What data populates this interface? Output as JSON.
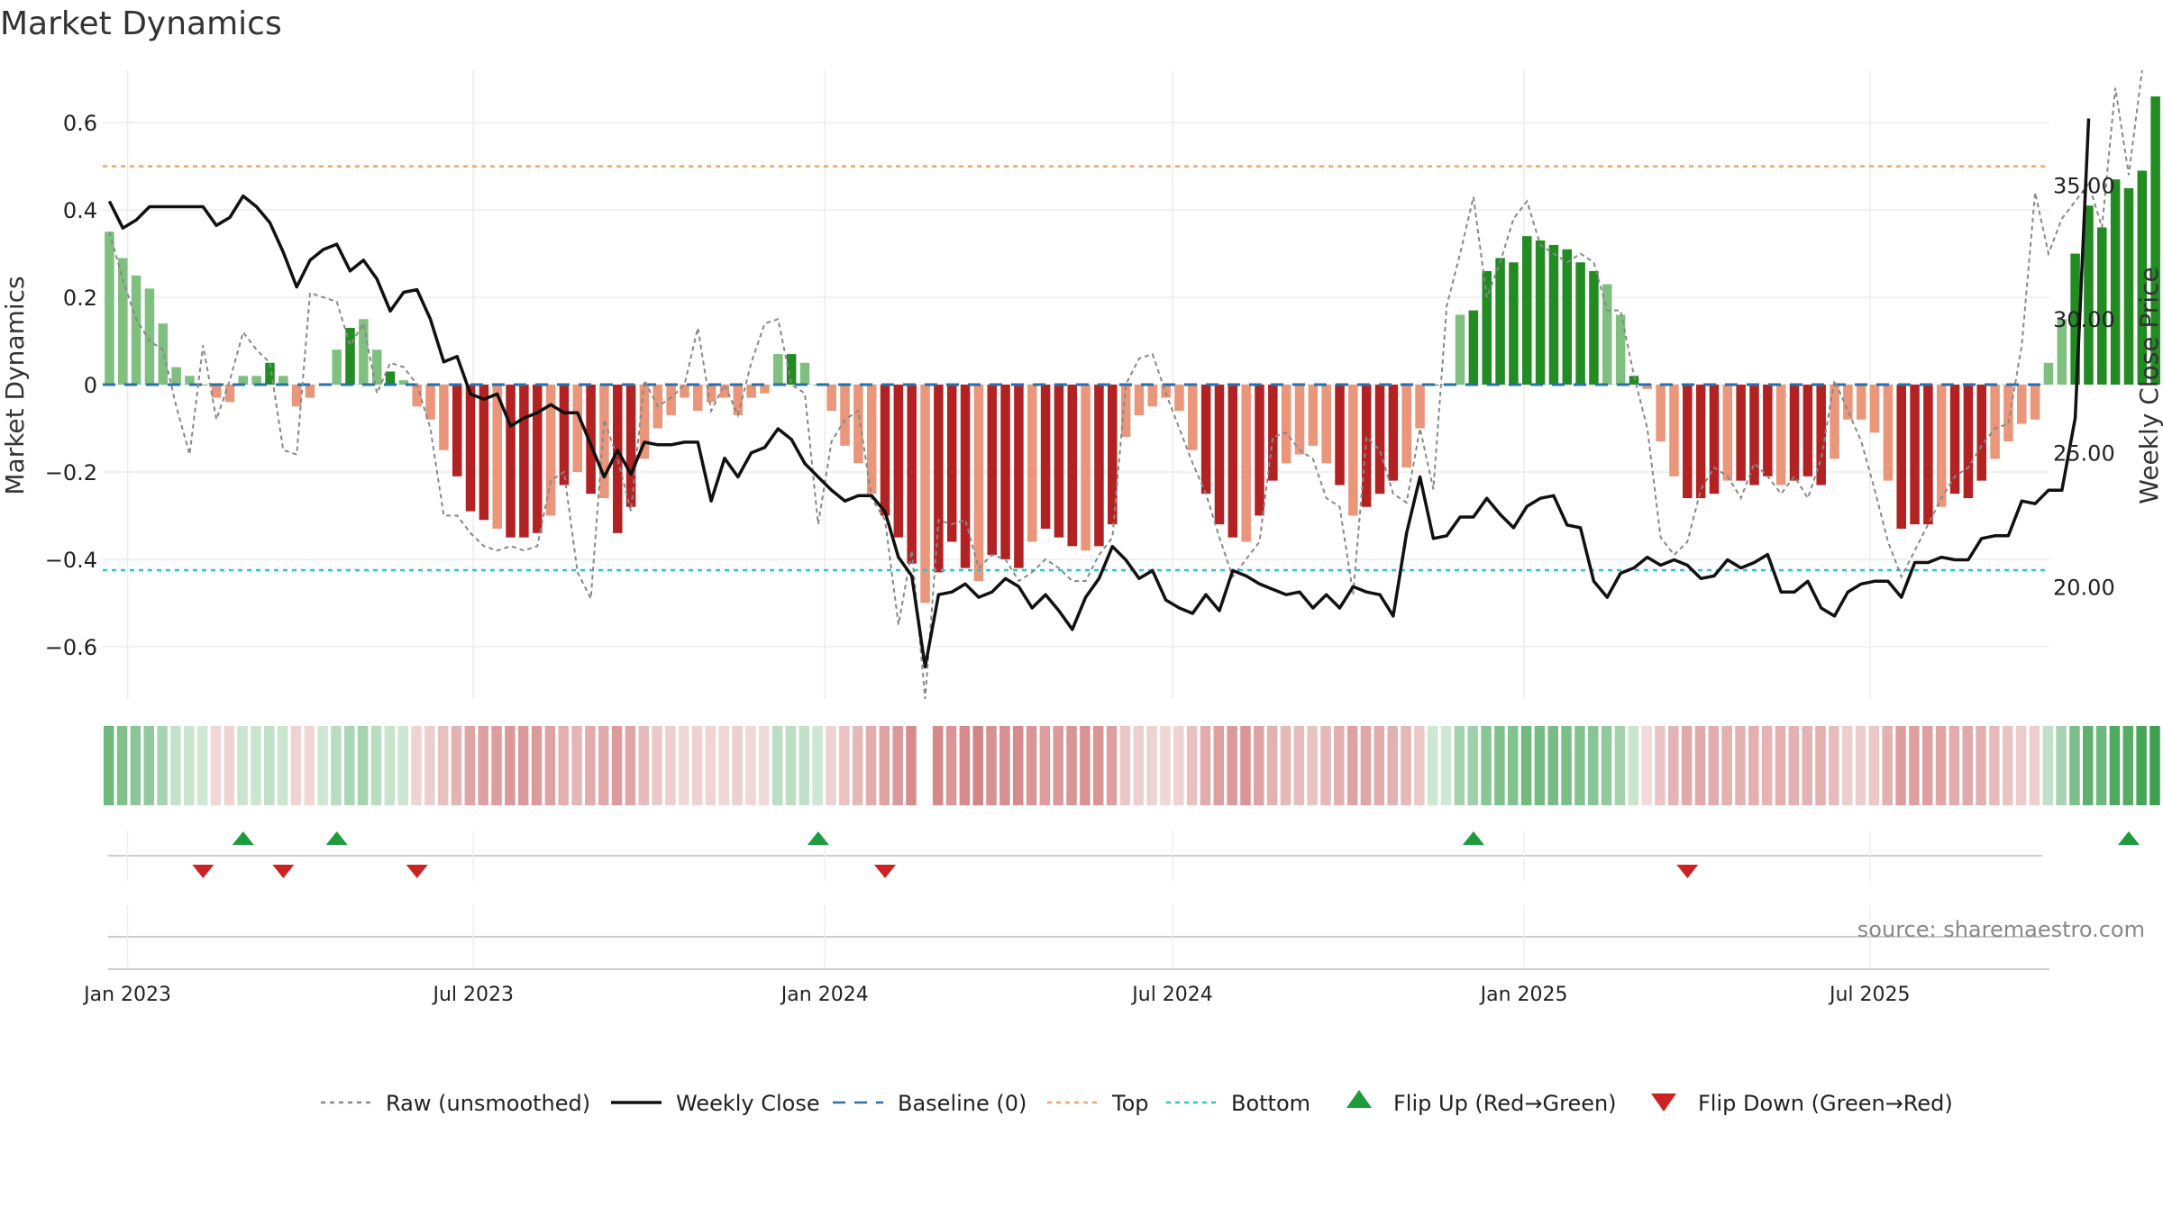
{
  "chart_data": {
    "type": "bar",
    "title": "Market Dynamics",
    "ylabel_left": "Market Dynamics",
    "ylabel_right": "Weekly Close Price",
    "source": "source: sharemaestro.com",
    "ylim_left": [
      -0.72,
      0.72
    ],
    "ylim_right": [
      15.8,
      39.3
    ],
    "yticks_left": [
      -0.6,
      -0.4,
      -0.2,
      0,
      0.2,
      0.4,
      0.6
    ],
    "yticks_left_labels": [
      "−0.6",
      "−0.4",
      "−0.2",
      "0",
      "0.2",
      "0.4",
      "0.6"
    ],
    "yticks_right": [
      20,
      25,
      30,
      35
    ],
    "yticks_right_labels": [
      "20.00",
      "25.00",
      "30.00",
      "35.00"
    ],
    "top_level": 0.5,
    "bottom_level": -0.425,
    "x_start": "2022-12-19",
    "x_end": "2025-10-03",
    "xticks": [
      "2023-01-01",
      "2023-07-01",
      "2024-01-01",
      "2024-07-01",
      "2025-01-01",
      "2025-07-01"
    ],
    "xtick_labels": [
      "Jan 2023",
      "Jul 2023",
      "Jan 2024",
      "Jul 2024",
      "Jan 2025",
      "Jul 2025"
    ],
    "grid": true,
    "legend_position": "bottom-center",
    "legend": [
      {
        "label": "Raw (unsmoothed)",
        "kind": "dotted-line",
        "color": "#888888"
      },
      {
        "label": "Weekly Close",
        "kind": "line",
        "color": "#111111"
      },
      {
        "label": "Baseline (0)",
        "kind": "dashed-line",
        "color": "#2b6fa8"
      },
      {
        "label": "Top",
        "kind": "dotted-line",
        "color": "#f4a460"
      },
      {
        "label": "Bottom",
        "kind": "dotted-line",
        "color": "#2ec4c4"
      },
      {
        "label": "Flip Up (Red→Green)",
        "kind": "triangle-up",
        "color": "#1e9b3e"
      },
      {
        "label": "Flip Down (Green→Red)",
        "kind": "triangle-down",
        "color": "#cc2222"
      }
    ],
    "colors": {
      "green_strong": "#228b22",
      "green_light": "#7fbf7f",
      "red_strong": "#b22222",
      "red_light": "#e9967a",
      "baseline": "#2b6fa8",
      "top": "#f4a460",
      "bottom": "#2ec4c4"
    },
    "series": [
      {
        "name": "Market Dynamics",
        "values": [
          0.35,
          0.29,
          0.25,
          0.22,
          0.14,
          0.04,
          0.02,
          0.0,
          -0.03,
          -0.04,
          0.02,
          0.02,
          0.05,
          0.02,
          -0.05,
          -0.03,
          0.0,
          0.08,
          0.13,
          0.15,
          0.08,
          0.03,
          0.01,
          -0.05,
          -0.08,
          -0.15,
          -0.21,
          -0.29,
          -0.31,
          -0.33,
          -0.35,
          -0.35,
          -0.34,
          -0.3,
          -0.23,
          -0.2,
          -0.25,
          -0.26,
          -0.34,
          -0.28,
          -0.17,
          -0.1,
          -0.07,
          -0.03,
          -0.06,
          -0.04,
          -0.03,
          -0.07,
          -0.03,
          -0.02,
          0.07,
          0.07,
          0.05,
          0.0,
          -0.06,
          -0.14,
          -0.18,
          -0.25,
          -0.3,
          -0.35,
          -0.41,
          -0.5,
          -0.43,
          -0.36,
          -0.42,
          -0.45,
          -0.39,
          -0.4,
          -0.42,
          -0.36,
          -0.33,
          -0.35,
          -0.37,
          -0.38,
          -0.37,
          -0.32,
          -0.12,
          -0.07,
          -0.05,
          -0.03,
          -0.06,
          -0.15,
          -0.25,
          -0.32,
          -0.35,
          -0.36,
          -0.3,
          -0.22,
          -0.18,
          -0.16,
          -0.14,
          -0.18,
          -0.23,
          -0.3,
          -0.28,
          -0.25,
          -0.22,
          -0.19,
          -0.1,
          0.0,
          0.0,
          0.16,
          0.17,
          0.26,
          0.29,
          0.28,
          0.34,
          0.33,
          0.32,
          0.31,
          0.28,
          0.26,
          0.23,
          0.16,
          0.02,
          -0.01,
          -0.13,
          -0.21,
          -0.26,
          -0.26,
          -0.25,
          -0.22,
          -0.22,
          -0.23,
          -0.21,
          -0.23,
          -0.22,
          -0.21,
          -0.23,
          -0.17,
          -0.08,
          -0.08,
          -0.11,
          -0.22,
          -0.33,
          -0.32,
          -0.32,
          -0.28,
          -0.25,
          -0.26,
          -0.22,
          -0.17,
          -0.13,
          -0.09,
          -0.08,
          0.05,
          0.15,
          0.3,
          0.41,
          0.36,
          0.47,
          0.45,
          0.49,
          0.66
        ]
      },
      {
        "name": "Raw (unsmoothed)",
        "values": [
          0.35,
          0.24,
          0.15,
          0.1,
          0.08,
          -0.05,
          -0.16,
          0.09,
          -0.08,
          0.01,
          0.12,
          0.08,
          0.05,
          -0.15,
          -0.16,
          0.21,
          0.2,
          0.19,
          0.09,
          0.14,
          -0.02,
          0.05,
          0.04,
          0.0,
          -0.1,
          -0.3,
          -0.3,
          -0.34,
          -0.37,
          -0.38,
          -0.37,
          -0.38,
          -0.37,
          -0.22,
          -0.2,
          -0.43,
          -0.49,
          -0.08,
          -0.17,
          -0.29,
          0.01,
          -0.05,
          -0.03,
          0.0,
          0.13,
          -0.06,
          0.0,
          -0.07,
          0.05,
          0.14,
          0.15,
          0.0,
          -0.02,
          -0.32,
          -0.13,
          -0.08,
          -0.06,
          -0.26,
          -0.31,
          -0.55,
          -0.38,
          -0.72,
          -0.31,
          -0.32,
          -0.31,
          -0.42,
          -0.39,
          -0.4,
          -0.45,
          -0.43,
          -0.4,
          -0.42,
          -0.45,
          -0.45,
          -0.39,
          -0.35,
          0.0,
          0.06,
          0.07,
          -0.02,
          -0.1,
          -0.18,
          -0.25,
          -0.35,
          -0.44,
          -0.4,
          -0.36,
          -0.12,
          -0.11,
          -0.15,
          -0.17,
          -0.26,
          -0.28,
          -0.48,
          -0.12,
          -0.15,
          -0.25,
          -0.27,
          -0.1,
          -0.24,
          0.18,
          0.3,
          0.43,
          0.2,
          0.28,
          0.38,
          0.42,
          0.32,
          0.3,
          0.28,
          0.3,
          0.28,
          0.17,
          0.17,
          0.02,
          -0.1,
          -0.35,
          -0.39,
          -0.36,
          -0.24,
          -0.19,
          -0.21,
          -0.26,
          -0.18,
          -0.21,
          -0.25,
          -0.21,
          -0.26,
          -0.17,
          0.01,
          -0.06,
          -0.13,
          -0.24,
          -0.36,
          -0.44,
          -0.38,
          -0.32,
          -0.26,
          -0.21,
          -0.19,
          -0.14,
          -0.1,
          -0.09,
          0.09,
          0.44,
          0.3,
          0.38,
          0.42,
          0.46,
          0.36,
          0.68,
          0.48,
          0.72
        ]
      },
      {
        "name": "Weekly Close",
        "axis": "right",
        "values": [
          34.4,
          33.4,
          33.7,
          34.2,
          34.2,
          34.2,
          34.2,
          34.2,
          33.5,
          33.8,
          34.6,
          34.2,
          33.6,
          32.5,
          31.2,
          32.2,
          32.6,
          32.8,
          31.8,
          32.2,
          31.5,
          30.3,
          31.0,
          31.1,
          30.0,
          28.4,
          28.6,
          27.2,
          27.0,
          27.2,
          26.0,
          26.3,
          26.5,
          26.8,
          26.5,
          26.5,
          25.3,
          24.1,
          25.1,
          24.2,
          25.4,
          25.3,
          25.3,
          25.4,
          25.4,
          23.2,
          24.8,
          24.1,
          25.0,
          25.2,
          25.9,
          25.5,
          24.6,
          24.1,
          23.6,
          23.2,
          23.4,
          23.4,
          22.8,
          21.1,
          20.4,
          17.0,
          19.7,
          19.8,
          20.1,
          19.6,
          19.8,
          20.3,
          20.0,
          19.2,
          19.7,
          19.1,
          18.4,
          19.6,
          20.3,
          21.5,
          21.0,
          20.3,
          20.6,
          19.5,
          19.2,
          19.0,
          19.7,
          19.1,
          20.6,
          20.4,
          20.1,
          19.9,
          19.7,
          19.8,
          19.2,
          19.7,
          19.2,
          20.0,
          19.8,
          19.7,
          18.9,
          22.0,
          24.1,
          21.8,
          21.9,
          22.6,
          22.6,
          23.3,
          22.7,
          22.2,
          23.0,
          23.3,
          23.4,
          22.3,
          22.2,
          20.2,
          19.6,
          20.5,
          20.7,
          21.1,
          20.8,
          21.0,
          20.8,
          20.3,
          20.4,
          21.0,
          20.7,
          20.9,
          21.2,
          19.8,
          19.8,
          20.2,
          19.2,
          18.9,
          19.8,
          20.1,
          20.2,
          20.2,
          19.6,
          20.9,
          20.9,
          21.1,
          21.0,
          21.0,
          21.8,
          21.9,
          21.9,
          23.2,
          23.1,
          23.6,
          23.6,
          26.3,
          37.5
        ]
      }
    ],
    "flip_up_weeks": [
      10,
      17,
      53,
      102,
      151
    ],
    "flip_down_weeks": [
      7,
      13,
      23,
      58,
      118
    ]
  }
}
